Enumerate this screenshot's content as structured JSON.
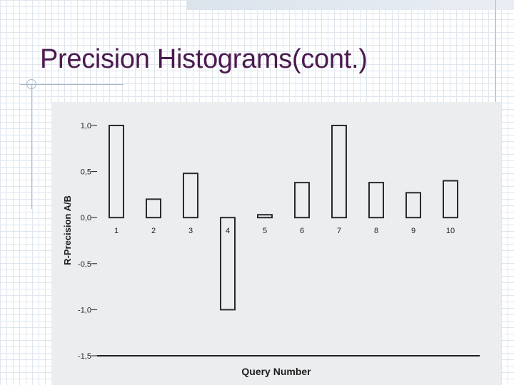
{
  "slide": {
    "title": "Precision Histograms(cont.)"
  },
  "colors": {
    "title": "#4b1a4f",
    "bars": "#2a2a2a",
    "axis": "#1e1e1e",
    "scan_background": "#ecedef"
  },
  "chart_data": {
    "type": "bar",
    "title": "",
    "xlabel": "Query Number",
    "ylabel": "R-Precision A/B",
    "categories": [
      "1",
      "2",
      "3",
      "4",
      "5",
      "6",
      "7",
      "8",
      "9",
      "10"
    ],
    "values": [
      1.0,
      0.2,
      0.48,
      -1.0,
      0.0,
      0.38,
      1.0,
      0.38,
      0.27,
      0.4
    ],
    "yticks": [
      "1,0",
      "0,5",
      "0,0",
      "-0,5",
      "-1,0",
      "-1,5"
    ],
    "ytick_values": [
      1.0,
      0.5,
      0.0,
      -0.5,
      -1.0,
      -1.5
    ],
    "ylim": [
      -1.5,
      1.0
    ],
    "bar_style": "outlined",
    "grid": false,
    "legend": "none"
  }
}
